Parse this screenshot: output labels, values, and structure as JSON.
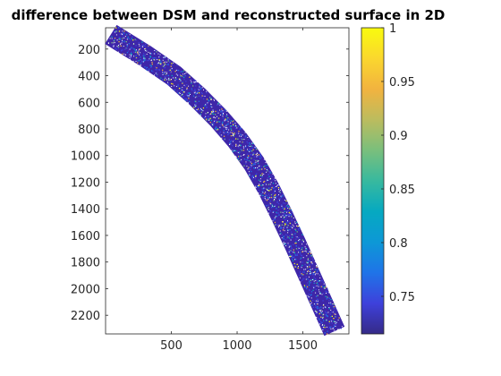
{
  "chart_data": {
    "type": "heatmap",
    "title": "difference between DSM and reconstructed surface in 2D",
    "xlabel": "",
    "ylabel": "",
    "xlim": [
      0,
      1850
    ],
    "ylim": [
      2340,
      40
    ],
    "x_ticks": [
      "500",
      "1000",
      "1500"
    ],
    "y_ticks": [
      "200",
      "400",
      "600",
      "800",
      "1000",
      "1200",
      "1400",
      "1600",
      "1800",
      "2000",
      "2200"
    ],
    "x_tick_values": [
      500,
      1000,
      1500
    ],
    "y_tick_values": [
      200,
      400,
      600,
      800,
      1000,
      1200,
      1400,
      1600,
      1800,
      2000,
      2200
    ],
    "colorbar": {
      "range": [
        0.715,
        1.0
      ],
      "tick_labels": [
        "1",
        "0.95",
        "0.9",
        "0.85",
        "0.8",
        "0.75"
      ],
      "tick_values": [
        1.0,
        0.95,
        0.9,
        0.85,
        0.8,
        0.75
      ],
      "colormap": "parula"
    },
    "strip_centerline": [
      {
        "x": 40,
        "y": 90
      },
      {
        "x": 300,
        "y": 250
      },
      {
        "x": 520,
        "y": 400
      },
      {
        "x": 700,
        "y": 560
      },
      {
        "x": 860,
        "y": 720
      },
      {
        "x": 1000,
        "y": 880
      },
      {
        "x": 1130,
        "y": 1060
      },
      {
        "x": 1240,
        "y": 1250
      },
      {
        "x": 1340,
        "y": 1450
      },
      {
        "x": 1440,
        "y": 1660
      },
      {
        "x": 1540,
        "y": 1880
      },
      {
        "x": 1640,
        "y": 2100
      },
      {
        "x": 1740,
        "y": 2320
      }
    ],
    "strip_half_width": 85,
    "dominant_value": 0.73
  },
  "colors": {
    "background_low": "#3E26A8",
    "colormap_stops": [
      "#352A87",
      "#3E41DB",
      "#1F74E8",
      "#0D98D6",
      "#06A9C1",
      "#38B99E",
      "#7ABF7C",
      "#BCBC5E",
      "#F2B33F",
      "#FAD72E",
      "#F9FB0E"
    ]
  }
}
